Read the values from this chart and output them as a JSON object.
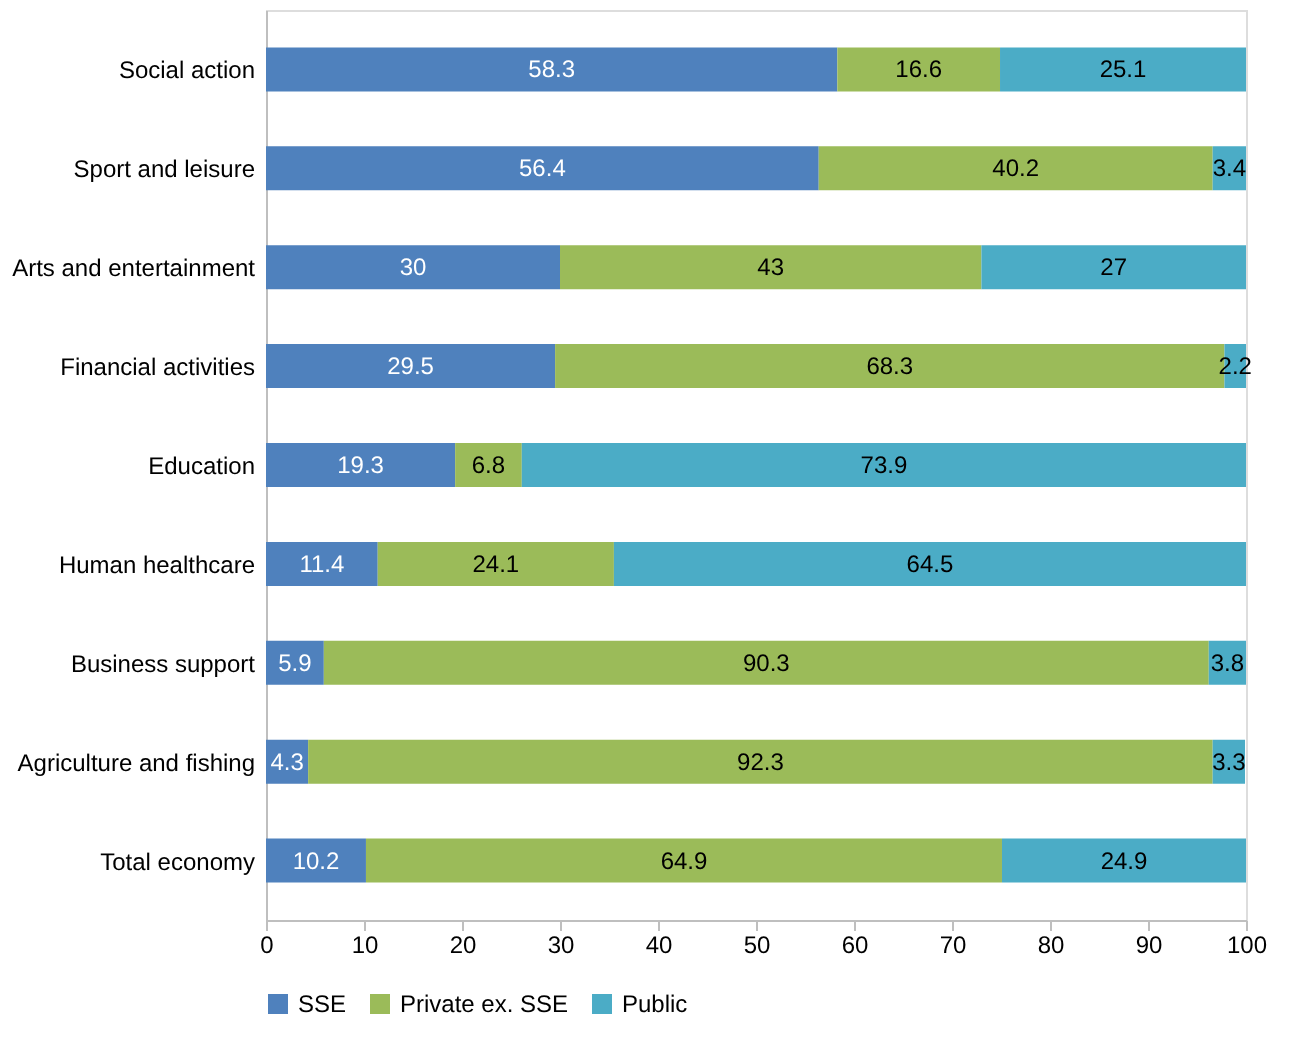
{
  "chart_data": {
    "type": "bar",
    "orientation": "horizontal",
    "stacked": true,
    "data_labels": true,
    "legend": "bottom",
    "grid": false,
    "categories": [
      "Social action",
      "Sport and leisure",
      "Arts and entertainment",
      "Financial activities",
      "Education",
      "Human healthcare",
      "Business support",
      "Agriculture and fishing",
      "Total economy"
    ],
    "series": [
      {
        "name": "SSE",
        "color": "#4f81bd",
        "values": [
          58.3,
          56.4,
          30,
          29.5,
          19.3,
          11.4,
          5.9,
          4.3,
          10.2
        ]
      },
      {
        "name": "Private ex. SSE",
        "color": "#9bbb59",
        "values": [
          16.6,
          40.2,
          43,
          68.3,
          6.8,
          24.1,
          90.3,
          92.3,
          64.9
        ]
      },
      {
        "name": "Public",
        "color": "#4bacc6",
        "values": [
          25.1,
          3.4,
          27,
          2.2,
          73.9,
          64.5,
          3.8,
          3.3,
          24.9
        ]
      }
    ],
    "xlim": [
      0,
      100
    ],
    "xticks": [
      0,
      10,
      20,
      30,
      40,
      50,
      60,
      70,
      80,
      90,
      100
    ]
  }
}
